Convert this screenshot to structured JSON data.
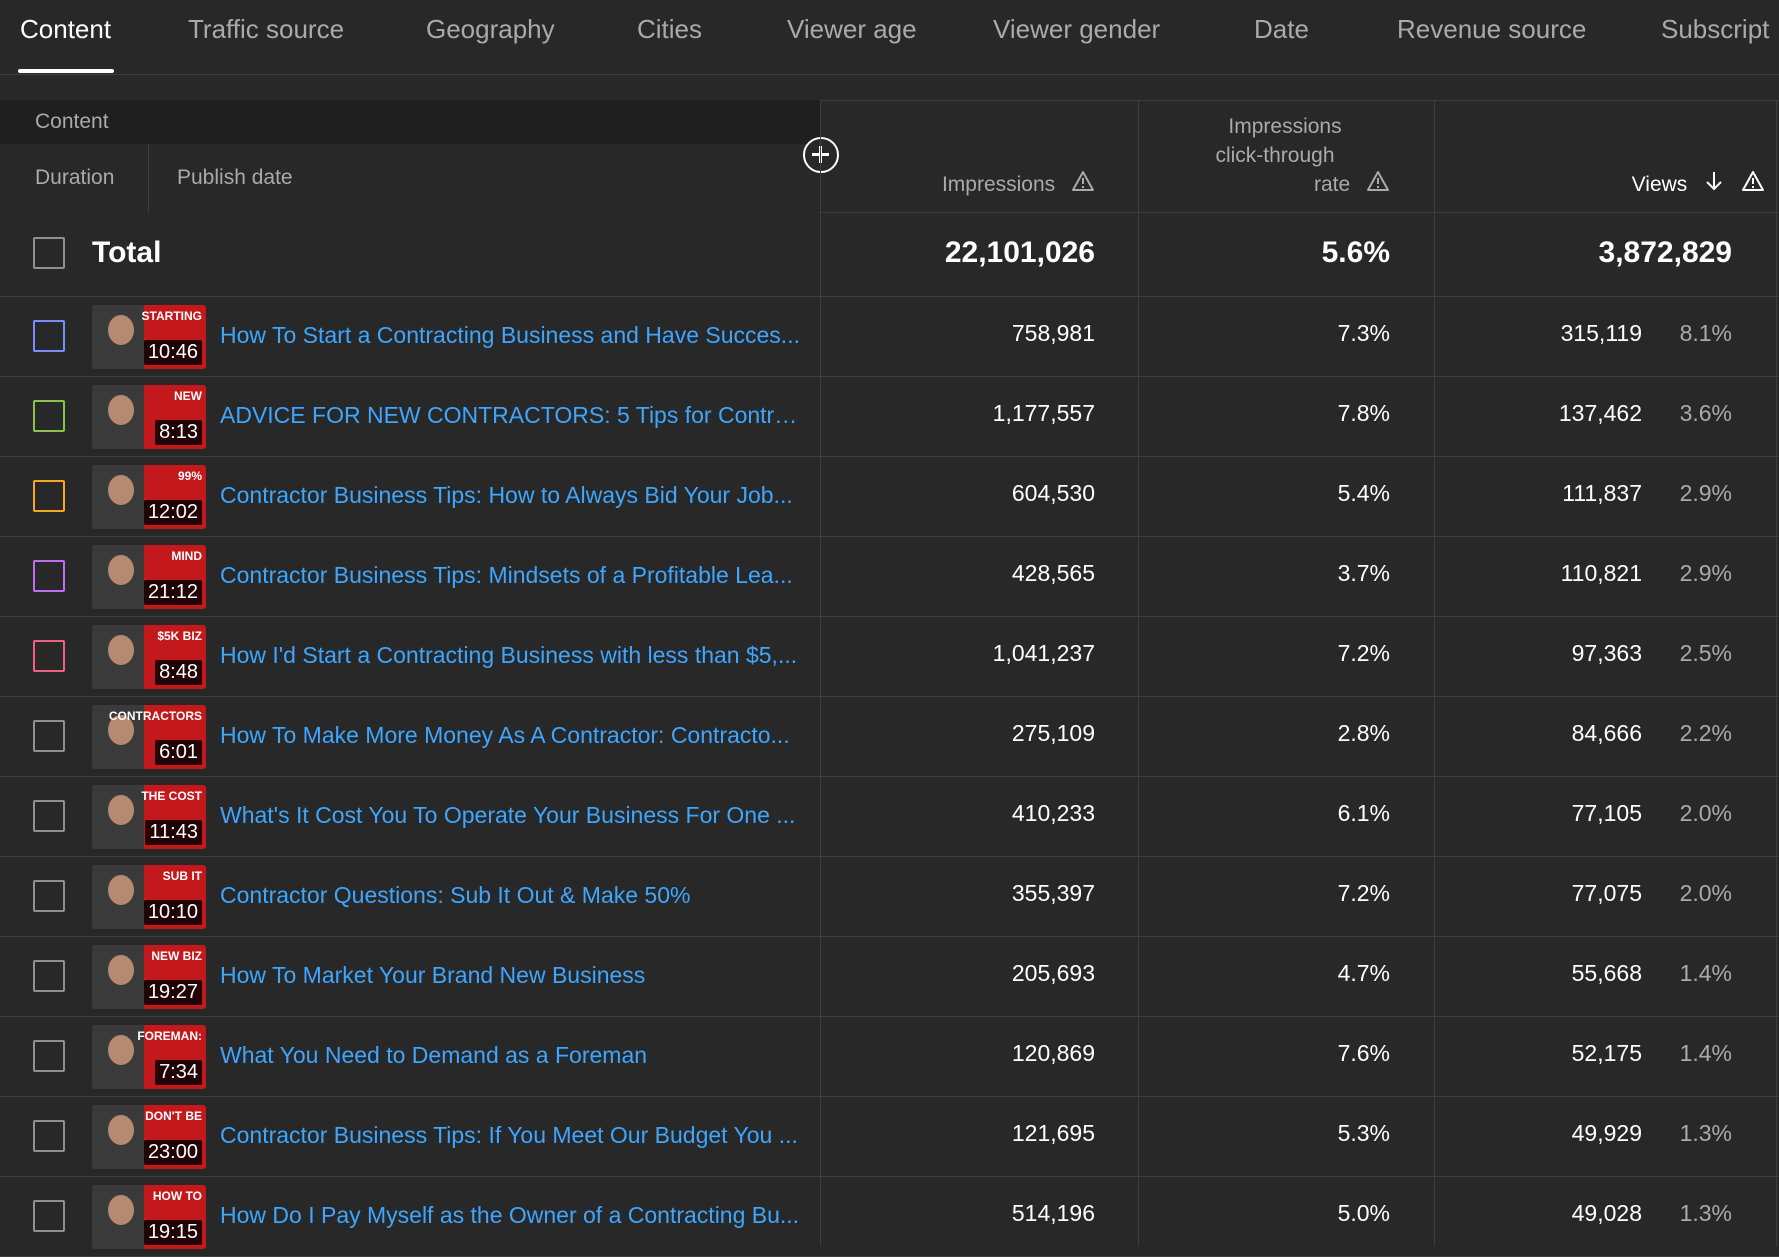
{
  "tabs": [
    "Content",
    "Traffic source",
    "Geography",
    "Cities",
    "Viewer age",
    "Viewer gender",
    "Date",
    "Revenue source",
    "Subscript"
  ],
  "header": {
    "content": "Content",
    "duration": "Duration",
    "publish_date": "Publish date",
    "impressions": "Impressions",
    "ctr_line1": "Impressions",
    "ctr_line2": "click-through",
    "ctr_line3": "rate",
    "views": "Views"
  },
  "total": {
    "label": "Total",
    "impressions": "22,101,026",
    "ctr": "5.6%",
    "views": "3,872,829"
  },
  "rows": [
    {
      "duration": "10:46",
      "title": "How To Start a Contracting Business and Have Succes...",
      "impressions": "758,981",
      "ctr": "7.3%",
      "views": "315,119",
      "share": "8.1%",
      "color": "#7b8cff",
      "thumb_word": "STARTING"
    },
    {
      "duration": "8:13",
      "title": "ADVICE FOR NEW CONTRACTORS: 5 Tips for Contract...",
      "impressions": "1,177,557",
      "ctr": "7.8%",
      "views": "137,462",
      "share": "3.6%",
      "color": "#8bc34a",
      "thumb_word": "NEW"
    },
    {
      "duration": "12:02",
      "title": "Contractor Business Tips: How to Always Bid Your Job...",
      "impressions": "604,530",
      "ctr": "5.4%",
      "views": "111,837",
      "share": "2.9%",
      "color": "#f5a623",
      "thumb_word": "99%"
    },
    {
      "duration": "21:12",
      "title": "Contractor Business Tips: Mindsets of a Profitable Lea...",
      "impressions": "428,565",
      "ctr": "3.7%",
      "views": "110,821",
      "share": "2.9%",
      "color": "#c06ef0",
      "thumb_word": "MIND"
    },
    {
      "duration": "8:48",
      "title": "How I'd Start a Contracting Business with less than $5,...",
      "impressions": "1,041,237",
      "ctr": "7.2%",
      "views": "97,363",
      "share": "2.5%",
      "color": "#ef5f80",
      "thumb_word": "$5K BIZ"
    },
    {
      "duration": "6:01",
      "title": "How To Make More Money As A Contractor: Contracto...",
      "impressions": "275,109",
      "ctr": "2.8%",
      "views": "84,666",
      "share": "2.2%",
      "color": "#909090",
      "thumb_word": "CONTRACTORS"
    },
    {
      "duration": "11:43",
      "title": "What's It Cost You To Operate Your Business For One ...",
      "impressions": "410,233",
      "ctr": "6.1%",
      "views": "77,105",
      "share": "2.0%",
      "color": "#909090",
      "thumb_word": "THE COST"
    },
    {
      "duration": "10:10",
      "title": "Contractor Questions: Sub It Out & Make 50%",
      "impressions": "355,397",
      "ctr": "7.2%",
      "views": "77,075",
      "share": "2.0%",
      "color": "#909090",
      "thumb_word": "SUB IT"
    },
    {
      "duration": "19:27",
      "title": "How To Market Your Brand New Business",
      "impressions": "205,693",
      "ctr": "4.7%",
      "views": "55,668",
      "share": "1.4%",
      "color": "#909090",
      "thumb_word": "NEW BIZ"
    },
    {
      "duration": "7:34",
      "title": "What You Need to Demand as a Foreman",
      "impressions": "120,869",
      "ctr": "7.6%",
      "views": "52,175",
      "share": "1.4%",
      "color": "#909090",
      "thumb_word": "FOREMAN:"
    },
    {
      "duration": "23:00",
      "title": "Contractor Business Tips: If You Meet Our Budget You ...",
      "impressions": "121,695",
      "ctr": "5.3%",
      "views": "49,929",
      "share": "1.3%",
      "color": "#909090",
      "thumb_word": "DON'T BE"
    },
    {
      "duration": "19:15",
      "title": "How Do I Pay Myself as the Owner of a Contracting Bu...",
      "impressions": "514,196",
      "ctr": "5.0%",
      "views": "49,028",
      "share": "1.3%",
      "color": "#909090",
      "thumb_word": "HOW TO"
    }
  ]
}
